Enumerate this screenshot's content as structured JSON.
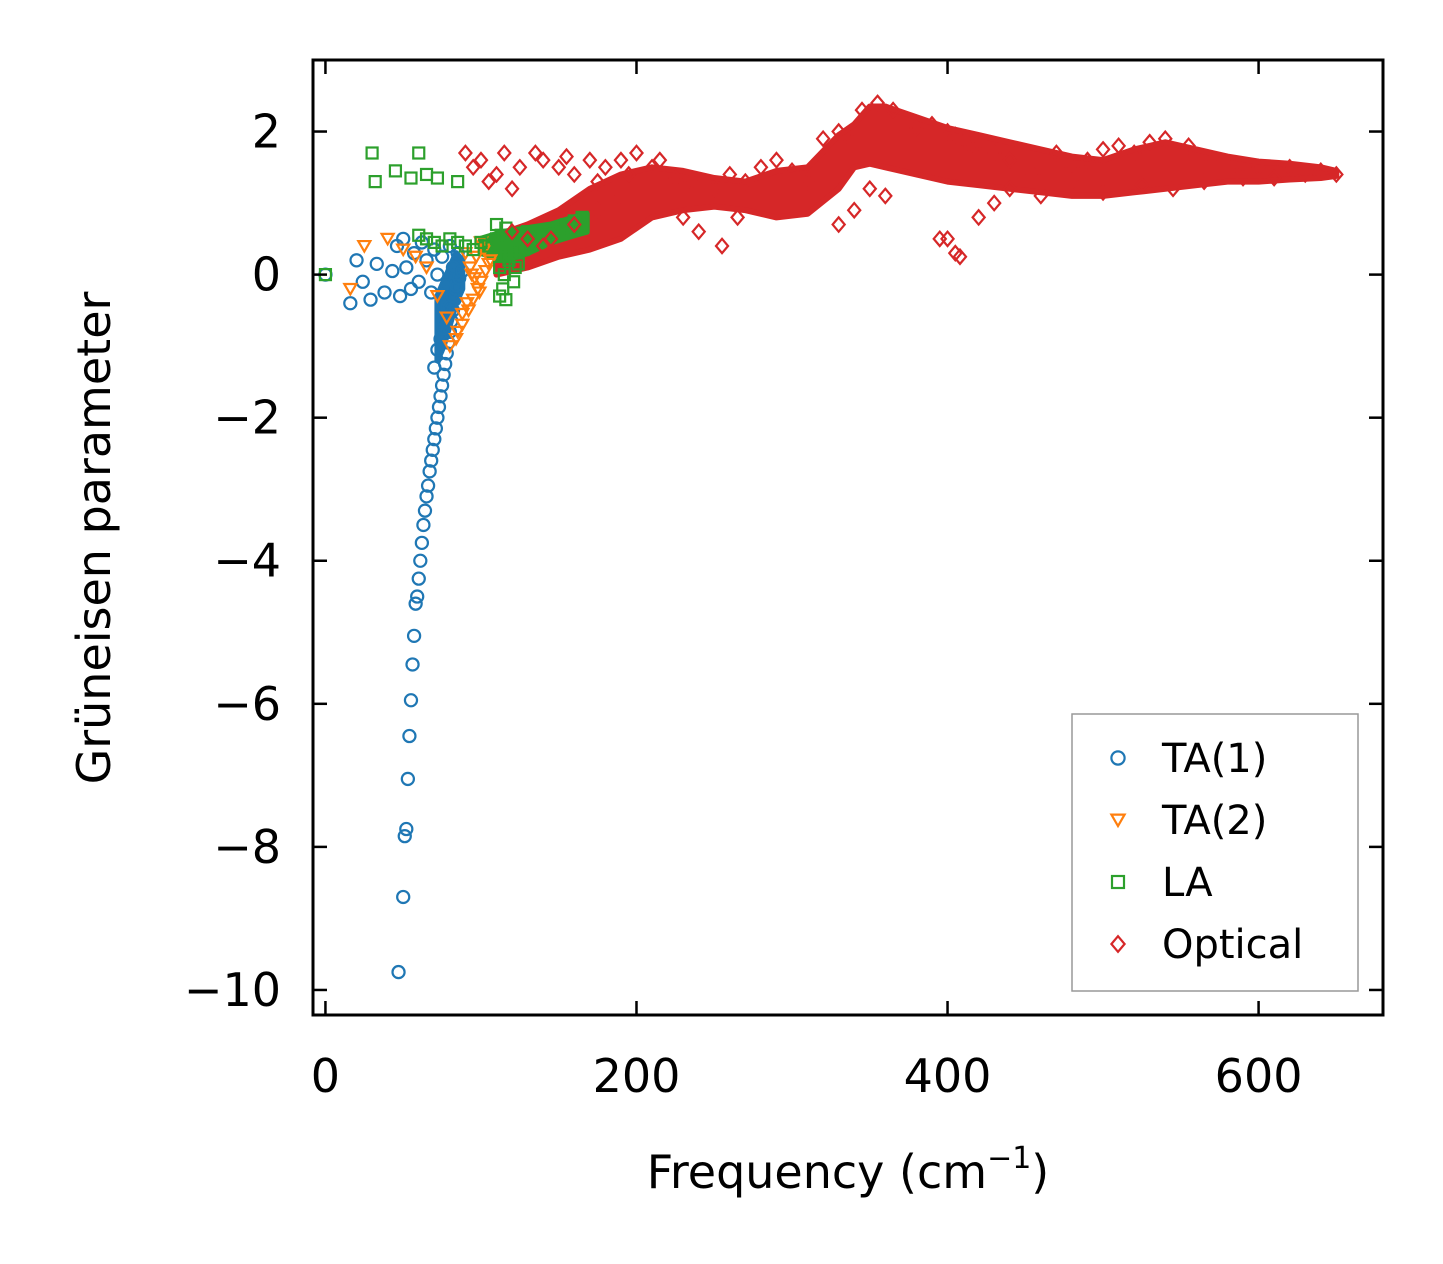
{
  "chart_data": {
    "type": "scatter",
    "title": "",
    "xlabel": "Frequency (cm",
    "xlabel_sup": "−1",
    "xlabel_end": ")",
    "ylabel": "Grüneisen parameter",
    "xlim": [
      -8,
      680
    ],
    "ylim": [
      -10.35,
      3.0
    ],
    "xticks": [
      0,
      200,
      400,
      600
    ],
    "yticks": [
      2,
      0,
      -2,
      -4,
      -6,
      -8,
      -10
    ],
    "xtick_labels": [
      "0",
      "200",
      "400",
      "600"
    ],
    "ytick_labels": [
      "2",
      "0",
      "−2",
      "−4",
      "−6",
      "−8",
      "−10"
    ],
    "legend_position": "bottom-right",
    "series": [
      {
        "name": "TA(1)",
        "marker": "circle",
        "color": "#1f77b4",
        "x": [
          0,
          16,
          20,
          24,
          29,
          33,
          38,
          43,
          46,
          48,
          50,
          52,
          55,
          57,
          60,
          62,
          65,
          68,
          70,
          72,
          75,
          78,
          80,
          82,
          85,
          47,
          50,
          51,
          52,
          53,
          54,
          55,
          56,
          57,
          58,
          59,
          60,
          61,
          62,
          63,
          64,
          65,
          66,
          67,
          68,
          69,
          70,
          71,
          72,
          73,
          74,
          75,
          76,
          77,
          78,
          79,
          80,
          81,
          82,
          83,
          84,
          70,
          72,
          74,
          76,
          78,
          80,
          82,
          84,
          86,
          88
        ],
        "y": [
          0.0,
          -0.4,
          0.2,
          -0.1,
          -0.35,
          0.15,
          -0.25,
          0.05,
          0.4,
          -0.3,
          0.5,
          0.1,
          -0.2,
          0.3,
          -0.1,
          0.45,
          0.2,
          -0.25,
          0.35,
          0.0,
          0.25,
          -0.15,
          0.4,
          0.1,
          0.3,
          -9.75,
          -8.7,
          -7.85,
          -7.75,
          -7.05,
          -6.45,
          -5.95,
          -5.45,
          -5.05,
          -4.6,
          -4.5,
          -4.25,
          -4.0,
          -3.75,
          -3.5,
          -3.3,
          -3.1,
          -2.95,
          -2.75,
          -2.6,
          -2.45,
          -2.3,
          -2.15,
          -2.0,
          -1.85,
          -1.7,
          -1.55,
          -1.4,
          -1.25,
          -1.1,
          -0.95,
          -0.8,
          -0.65,
          -0.5,
          -0.35,
          -0.2,
          -1.3,
          -1.05,
          -0.9,
          -0.75,
          -0.6,
          -0.45,
          -0.3,
          -0.15,
          -0.05,
          0.05
        ]
      },
      {
        "name": "TA(2)",
        "marker": "triangle-down",
        "color": "#ff7f0e",
        "x": [
          16,
          25,
          40,
          50,
          58,
          65,
          72,
          78,
          84,
          88,
          92,
          95,
          98,
          100,
          103,
          106,
          90,
          93,
          96,
          99,
          102,
          105,
          80,
          85,
          88,
          91,
          94,
          97,
          100
        ],
        "y": [
          -0.2,
          0.4,
          0.5,
          0.35,
          0.25,
          0.1,
          -0.3,
          -0.6,
          -0.9,
          -0.7,
          -0.5,
          -0.35,
          -0.2,
          -0.1,
          0.05,
          0.2,
          0.3,
          0.1,
          -0.05,
          -0.25,
          0.35,
          0.15,
          -1.0,
          -0.8,
          -0.55,
          -0.4,
          0.0,
          0.25,
          0.45
        ]
      },
      {
        "name": "LA",
        "marker": "square",
        "color": "#2ca02c",
        "x": [
          0,
          30,
          32,
          45,
          55,
          60,
          65,
          72,
          85,
          60,
          65,
          70,
          75,
          80,
          85,
          90,
          95,
          100,
          105,
          110,
          112,
          114,
          116,
          118,
          120,
          125,
          130,
          135,
          140,
          145,
          150,
          155,
          160,
          165,
          112,
          115,
          118,
          121,
          124,
          127,
          130,
          110,
          113,
          116,
          119,
          122
        ],
        "y": [
          0.0,
          1.7,
          1.3,
          1.45,
          1.35,
          1.7,
          1.4,
          1.35,
          1.3,
          0.55,
          0.5,
          0.45,
          0.4,
          0.5,
          0.45,
          0.4,
          0.35,
          0.45,
          0.4,
          0.5,
          0.1,
          -0.2,
          -0.35,
          0.25,
          0.3,
          0.4,
          0.45,
          0.5,
          0.55,
          0.6,
          0.65,
          0.7,
          0.75,
          0.8,
          -0.3,
          0.0,
          0.2,
          -0.1,
          0.15,
          0.35,
          0.6,
          0.7,
          0.55,
          0.65,
          0.3,
          0.1
        ]
      },
      {
        "name": "Optical",
        "marker": "diamond",
        "color": "#d62728",
        "x": [
          90,
          95,
          100,
          105,
          110,
          115,
          120,
          125,
          135,
          140,
          150,
          155,
          160,
          170,
          175,
          180,
          190,
          195,
          200,
          210,
          215,
          225,
          235,
          250,
          260,
          270,
          280,
          290,
          300,
          310,
          320,
          330,
          335,
          345,
          355,
          365,
          380,
          390,
          400,
          405,
          410,
          415,
          420,
          430,
          440,
          455,
          470,
          480,
          490,
          500,
          510,
          520,
          530,
          540,
          555,
          570,
          585,
          600,
          620,
          640,
          650,
          120,
          130,
          140,
          145,
          160,
          175,
          185,
          230,
          240,
          255,
          265,
          330,
          340,
          350,
          360,
          400,
          405,
          408,
          395,
          420,
          430,
          440,
          460,
          480,
          500,
          525,
          545,
          565,
          590,
          610,
          630
        ],
        "y": [
          1.7,
          1.5,
          1.6,
          1.3,
          1.4,
          1.7,
          1.2,
          1.5,
          1.7,
          1.6,
          1.5,
          1.65,
          1.4,
          1.6,
          1.3,
          1.5,
          1.6,
          1.4,
          1.7,
          1.5,
          1.6,
          1.35,
          1.3,
          1.2,
          1.4,
          1.3,
          1.5,
          1.6,
          1.45,
          1.3,
          1.9,
          2.0,
          1.95,
          2.3,
          2.4,
          2.3,
          2.05,
          2.1,
          2.0,
          1.95,
          1.9,
          1.8,
          1.85,
          1.7,
          1.6,
          1.4,
          1.7,
          1.5,
          1.6,
          1.75,
          1.8,
          1.7,
          1.85,
          1.9,
          1.8,
          1.6,
          1.55,
          1.5,
          1.5,
          1.45,
          1.4,
          0.6,
          0.5,
          0.4,
          0.5,
          0.7,
          0.9,
          1.0,
          0.8,
          0.6,
          0.4,
          0.8,
          0.7,
          0.9,
          1.2,
          1.1,
          0.5,
          0.3,
          0.25,
          0.5,
          0.8,
          1.0,
          1.2,
          1.1,
          1.3,
          1.15,
          1.25,
          1.2,
          1.3,
          1.35,
          1.35,
          1.4
        ]
      }
    ],
    "band_series": [
      {
        "name": "Optical",
        "color": "#d62728",
        "x": [
          110,
          130,
          150,
          170,
          190,
          210,
          230,
          250,
          270,
          290,
          310,
          330,
          340,
          350,
          360,
          380,
          400,
          420,
          440,
          460,
          480,
          500,
          520,
          540,
          560,
          580,
          600,
          620,
          640,
          650
        ],
        "y_low": [
          0.0,
          0.1,
          0.25,
          0.35,
          0.5,
          0.8,
          0.9,
          0.95,
          0.9,
          0.8,
          0.85,
          1.2,
          1.5,
          1.55,
          1.5,
          1.4,
          1.3,
          1.25,
          1.2,
          1.15,
          1.1,
          1.1,
          1.15,
          1.2,
          1.25,
          1.3,
          1.3,
          1.33,
          1.35,
          1.38
        ],
        "y_high": [
          0.55,
          0.7,
          0.9,
          1.2,
          1.4,
          1.5,
          1.45,
          1.35,
          1.3,
          1.45,
          1.5,
          1.95,
          2.1,
          2.35,
          2.35,
          2.2,
          2.05,
          1.95,
          1.85,
          1.75,
          1.65,
          1.6,
          1.75,
          1.85,
          1.75,
          1.65,
          1.58,
          1.55,
          1.5,
          1.45
        ]
      },
      {
        "name": "TA(1)",
        "color": "#1f77b4",
        "x": [
          72,
          76,
          80,
          84,
          88
        ],
        "y_low": [
          -1.2,
          -1.0,
          -0.7,
          -0.4,
          -0.2
        ],
        "y_high": [
          -0.3,
          -0.1,
          0.1,
          0.3,
          0.2
        ]
      },
      {
        "name": "LA",
        "color": "#2ca02c",
        "x": [
          100,
          115,
          130,
          145,
          160,
          168
        ],
        "y_low": [
          0.3,
          0.2,
          0.3,
          0.45,
          0.55,
          0.6
        ],
        "y_high": [
          0.5,
          0.6,
          0.65,
          0.7,
          0.8,
          0.85
        ]
      }
    ]
  }
}
